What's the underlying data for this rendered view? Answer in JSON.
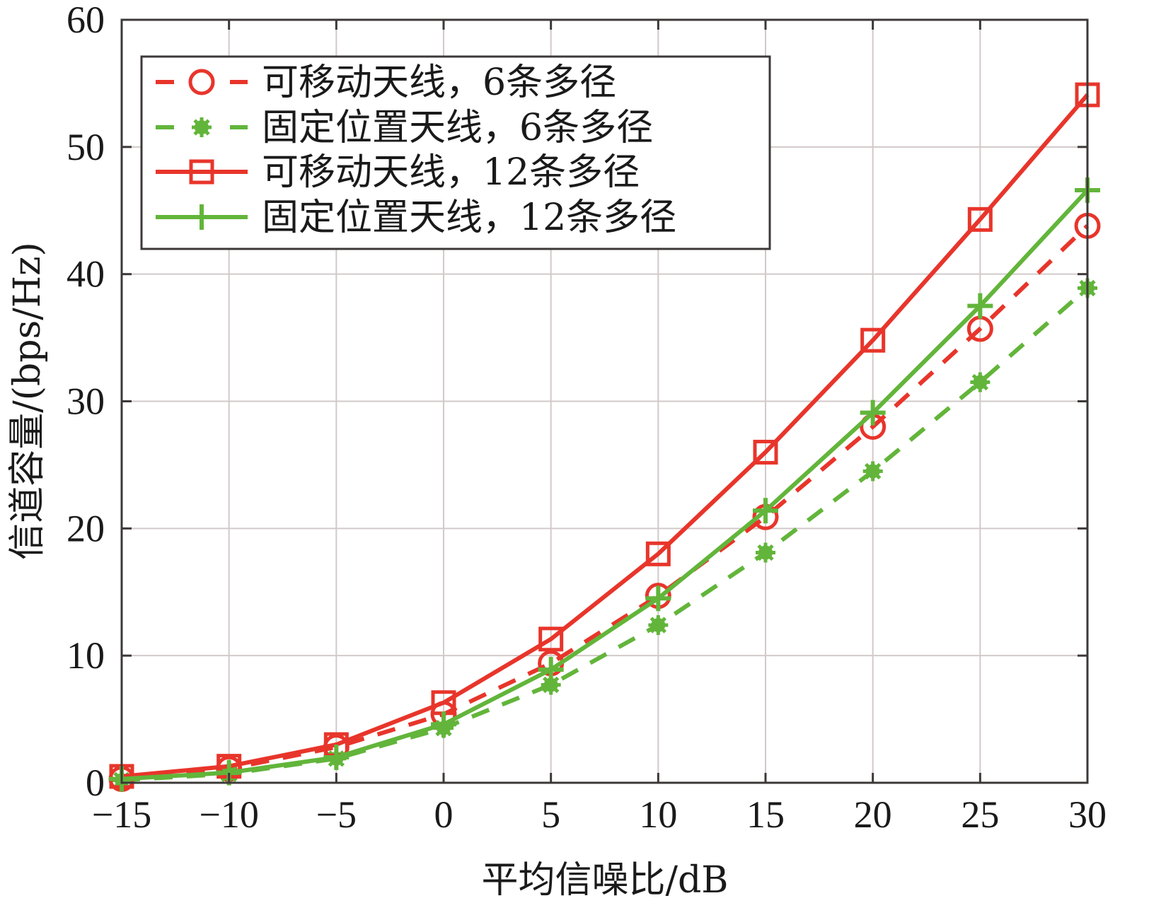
{
  "chart_data": {
    "type": "line",
    "title": "",
    "xlabel": "平均信噪比/dB",
    "ylabel": "信道容量/(bps/Hz)",
    "xlim": [
      -15,
      30
    ],
    "ylim": [
      0,
      60
    ],
    "grid": true,
    "legend_position": "upper left",
    "x": [
      -15,
      -10,
      -5,
      0,
      5,
      10,
      15,
      20,
      25,
      30
    ],
    "x_ticks": [
      -15,
      -10,
      -5,
      0,
      5,
      10,
      15,
      20,
      25,
      30
    ],
    "x_tick_labels": [
      "−15",
      "−10",
      "−5",
      "0",
      "5",
      "10",
      "15",
      "20",
      "25",
      "30"
    ],
    "y_ticks": [
      0,
      10,
      20,
      30,
      40,
      50,
      60
    ],
    "y_tick_labels": [
      "0",
      "10",
      "20",
      "30",
      "40",
      "50",
      "60"
    ],
    "series": [
      {
        "name": "可移动天线，6条多径",
        "color": "#e8352b",
        "line_style": "dashed",
        "marker": "circle",
        "values": [
          0.3,
          1.1,
          2.8,
          5.4,
          9.4,
          14.7,
          20.9,
          28.0,
          35.7,
          43.8
        ]
      },
      {
        "name": "固定位置天线，6条多径",
        "color": "#62b53a",
        "line_style": "dashed",
        "marker": "asterisk",
        "values": [
          0.2,
          0.7,
          1.9,
          4.3,
          7.7,
          12.4,
          18.1,
          24.5,
          31.5,
          38.9
        ]
      },
      {
        "name": "可移动天线，12条多径",
        "color": "#e8352b",
        "line_style": "solid",
        "marker": "square",
        "values": [
          0.5,
          1.3,
          3.0,
          6.3,
          11.3,
          18.0,
          26.0,
          34.8,
          44.3,
          54.1
        ]
      },
      {
        "name": "固定位置天线，12条多径",
        "color": "#62b53a",
        "line_style": "solid",
        "marker": "plus",
        "values": [
          0.3,
          0.8,
          2.0,
          4.6,
          8.9,
          14.5,
          21.4,
          29.1,
          37.5,
          46.6
        ]
      }
    ]
  },
  "colors": {
    "red": "#e8352b",
    "green": "#62b53a",
    "axis": "#3d3838",
    "grid": "#d2c9c9"
  }
}
